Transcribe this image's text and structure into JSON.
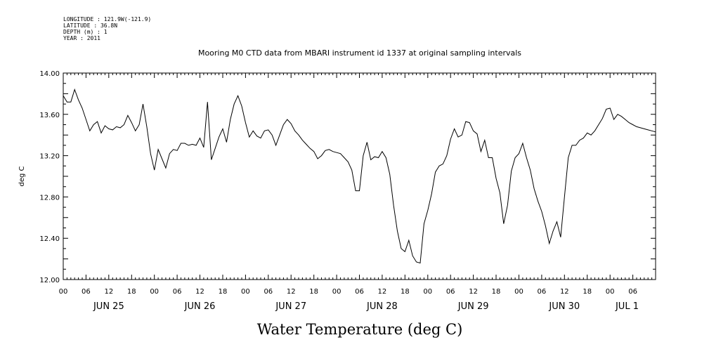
{
  "header": {
    "longitude": "LONGITUDE : 121.9W(-121.9)",
    "latitude": "LATITUDE : 36.8N",
    "depth": "DEPTH (m) : 1",
    "year": "YEAR : 2011"
  },
  "chart_data": {
    "type": "line",
    "title": "Mooring M0 CTD data from MBARI instrument id 1337 at original sampling intervals",
    "ylabel": "deg C",
    "xlabel": "Water Temperature (deg C)",
    "x_unit": "hours since JUN 25 00",
    "xlim": [
      0,
      156
    ],
    "ylim": [
      12.0,
      14.0
    ],
    "y_ticks": [
      "12.00",
      "12.40",
      "12.80",
      "13.20",
      "13.60",
      "14.00"
    ],
    "x_tick_labels": [
      "00",
      "06",
      "12",
      "18",
      "00",
      "06",
      "12",
      "18",
      "00",
      "06",
      "12",
      "18",
      "00",
      "06",
      "12",
      "18",
      "00",
      "06",
      "12",
      "18",
      "00",
      "06",
      "12",
      "18",
      "00",
      "06"
    ],
    "day_labels": [
      "JUN 25",
      "JUN 26",
      "JUN 27",
      "JUN 28",
      "JUN 29",
      "JUN 30",
      "JUL 1"
    ],
    "series": [
      {
        "name": "Water Temperature",
        "x": [
          0,
          1,
          2,
          3,
          4,
          5,
          6,
          7,
          8,
          9,
          10,
          11,
          12,
          13,
          14,
          15,
          16,
          17,
          18,
          19,
          20,
          21,
          22,
          23,
          24,
          25,
          26,
          27,
          28,
          29,
          30,
          31,
          32,
          33,
          34,
          35,
          36,
          37,
          38,
          39,
          40,
          41,
          42,
          43,
          44,
          45,
          46,
          47,
          48,
          49,
          50,
          51,
          52,
          53,
          54,
          55,
          56,
          57,
          58,
          59,
          60,
          61,
          62,
          63,
          64,
          65,
          66,
          67,
          68,
          69,
          70,
          71,
          72,
          73,
          74,
          75,
          76,
          77,
          78,
          79,
          80,
          81,
          82,
          83,
          84,
          85,
          86,
          87,
          88,
          89,
          90,
          91,
          92,
          93,
          94,
          95,
          96,
          97,
          98,
          99,
          100,
          101,
          102,
          103,
          104,
          105,
          106,
          107,
          108,
          109,
          110,
          111,
          112,
          113,
          114,
          115,
          116,
          117,
          118,
          119,
          120,
          121,
          122,
          123,
          124,
          125,
          126,
          127,
          128,
          129,
          130,
          131,
          132,
          133,
          134,
          135,
          136,
          137,
          138,
          139,
          140,
          141,
          142,
          143,
          144,
          145,
          146,
          147,
          148,
          149,
          150,
          151,
          152,
          153,
          154,
          155,
          156
        ],
        "y": [
          13.78,
          13.72,
          13.72,
          13.84,
          13.74,
          13.66,
          13.55,
          13.44,
          13.5,
          13.53,
          13.42,
          13.49,
          13.46,
          13.45,
          13.48,
          13.47,
          13.5,
          13.59,
          13.52,
          13.44,
          13.5,
          13.7,
          13.48,
          13.22,
          13.06,
          13.26,
          13.17,
          13.08,
          13.22,
          13.26,
          13.25,
          13.32,
          13.32,
          13.3,
          13.31,
          13.3,
          13.37,
          13.28,
          13.72,
          13.16,
          13.27,
          13.38,
          13.46,
          13.33,
          13.55,
          13.7,
          13.78,
          13.68,
          13.52,
          13.38,
          13.44,
          13.39,
          13.37,
          13.44,
          13.45,
          13.4,
          13.3,
          13.4,
          13.5,
          13.55,
          13.51,
          13.44,
          13.4,
          13.35,
          13.31,
          13.27,
          13.24,
          13.17,
          13.2,
          13.25,
          13.26,
          13.24,
          13.23,
          13.22,
          13.18,
          13.14,
          13.06,
          12.86,
          12.86,
          13.2,
          13.33,
          13.16,
          13.19,
          13.18,
          13.24,
          13.18,
          13.02,
          12.72,
          12.47,
          12.3,
          12.27,
          12.38,
          12.23,
          12.17,
          12.16,
          12.54,
          12.67,
          12.83,
          13.04,
          13.1,
          13.12,
          13.2,
          13.36,
          13.46,
          13.38,
          13.4,
          13.53,
          13.52,
          13.44,
          13.41,
          13.24,
          13.35,
          13.18,
          13.18,
          12.98,
          12.84,
          12.54,
          12.72,
          13.05,
          13.18,
          13.22,
          13.32,
          13.18,
          13.06,
          12.88,
          12.76,
          12.66,
          12.52,
          12.35,
          12.47,
          12.56,
          12.41,
          12.8,
          13.18,
          13.3,
          13.3,
          13.35,
          13.37,
          13.42,
          13.4,
          13.44,
          13.5,
          13.56,
          13.65,
          13.66,
          13.55,
          13.6,
          13.58,
          13.55,
          13.52,
          13.5,
          13.48,
          13.47,
          13.46,
          13.45,
          13.44,
          13.43
        ]
      }
    ]
  }
}
